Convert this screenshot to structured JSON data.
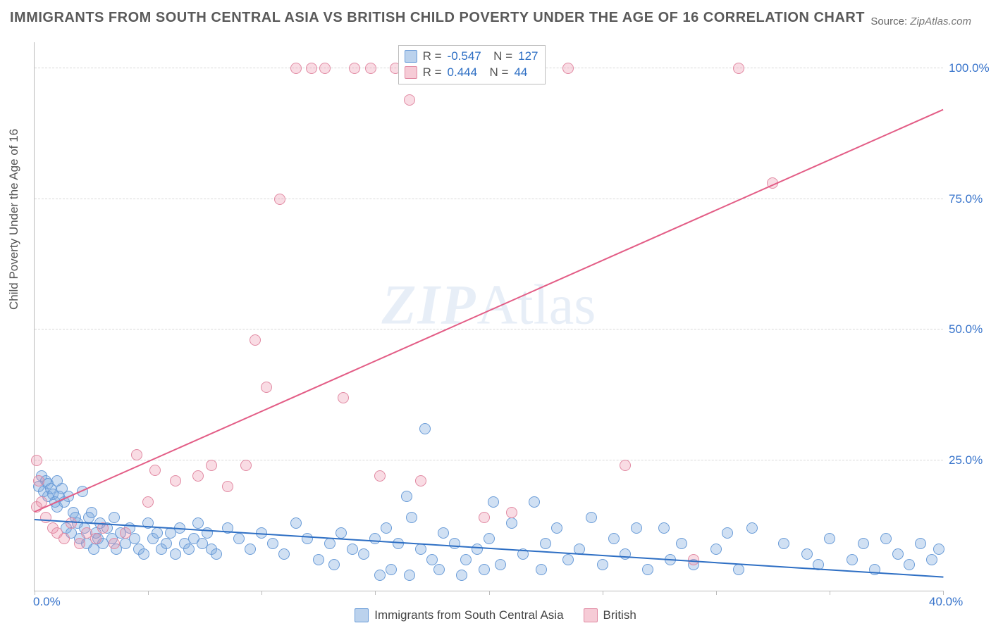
{
  "title": "IMMIGRANTS FROM SOUTH CENTRAL ASIA VS BRITISH CHILD POVERTY UNDER THE AGE OF 16 CORRELATION CHART",
  "source_label": "Source:",
  "source_value": "ZipAtlas.com",
  "watermark_a": "ZIP",
  "watermark_b": "Atlas",
  "ylabel": "Child Poverty Under the Age of 16",
  "chart": {
    "type": "scatter",
    "xlim": [
      0,
      40
    ],
    "ylim": [
      0,
      105
    ],
    "x_ticks": [
      0,
      5,
      10,
      15,
      20,
      25,
      30,
      35,
      40
    ],
    "x_tick_labels": {
      "0": "0.0%",
      "40": "40.0%"
    },
    "y_gridlines": [
      25,
      50,
      75,
      100
    ],
    "y_tick_labels": {
      "25": "25.0%",
      "50": "50.0%",
      "75": "75.0%",
      "100": "100.0%"
    },
    "background_color": "#ffffff",
    "grid_color": "#d8d8d8",
    "axis_color": "#bbbbbb",
    "marker_radius": 8,
    "series": [
      {
        "id": "blue",
        "label": "Immigrants from South Central Asia",
        "fill_color": "rgba(120,165,220,0.35)",
        "stroke_color": "#6a9cd8",
        "trend_color": "#2e6fc4",
        "R": "-0.547",
        "N": "127",
        "trend": {
          "x1": 0,
          "y1": 13.5,
          "x2": 40,
          "y2": 2.5
        },
        "points": [
          [
            0.2,
            20
          ],
          [
            0.3,
            22
          ],
          [
            0.4,
            19
          ],
          [
            0.5,
            21
          ],
          [
            0.6,
            18
          ],
          [
            0.6,
            20.5
          ],
          [
            0.7,
            19.5
          ],
          [
            0.8,
            18.5
          ],
          [
            0.9,
            17
          ],
          [
            1.0,
            21
          ],
          [
            1.0,
            16
          ],
          [
            1.1,
            18
          ],
          [
            1.2,
            19.5
          ],
          [
            1.3,
            17
          ],
          [
            1.4,
            12
          ],
          [
            1.5,
            18
          ],
          [
            1.6,
            11
          ],
          [
            1.7,
            15
          ],
          [
            1.8,
            14
          ],
          [
            1.9,
            13
          ],
          [
            2.0,
            10
          ],
          [
            2.1,
            19
          ],
          [
            2.2,
            12
          ],
          [
            2.3,
            9
          ],
          [
            2.4,
            14
          ],
          [
            2.5,
            15
          ],
          [
            2.6,
            8
          ],
          [
            2.7,
            11
          ],
          [
            2.8,
            10
          ],
          [
            2.9,
            13
          ],
          [
            3.0,
            9
          ],
          [
            3.2,
            12
          ],
          [
            3.4,
            10
          ],
          [
            3.5,
            14
          ],
          [
            3.6,
            8
          ],
          [
            3.8,
            11
          ],
          [
            4.0,
            9
          ],
          [
            4.2,
            12
          ],
          [
            4.4,
            10
          ],
          [
            4.6,
            8
          ],
          [
            4.8,
            7
          ],
          [
            5.0,
            13
          ],
          [
            5.2,
            10
          ],
          [
            5.4,
            11
          ],
          [
            5.6,
            8
          ],
          [
            5.8,
            9
          ],
          [
            6.0,
            11
          ],
          [
            6.2,
            7
          ],
          [
            6.4,
            12
          ],
          [
            6.6,
            9
          ],
          [
            6.8,
            8
          ],
          [
            7.0,
            10
          ],
          [
            7.2,
            13
          ],
          [
            7.4,
            9
          ],
          [
            7.6,
            11
          ],
          [
            7.8,
            8
          ],
          [
            8.0,
            7
          ],
          [
            8.5,
            12
          ],
          [
            9.0,
            10
          ],
          [
            9.5,
            8
          ],
          [
            10.0,
            11
          ],
          [
            10.5,
            9
          ],
          [
            11.0,
            7
          ],
          [
            11.5,
            13
          ],
          [
            12.0,
            10
          ],
          [
            12.5,
            6
          ],
          [
            13.0,
            9
          ],
          [
            13.2,
            5
          ],
          [
            13.5,
            11
          ],
          [
            14.0,
            8
          ],
          [
            14.5,
            7
          ],
          [
            15.0,
            10
          ],
          [
            15.2,
            3
          ],
          [
            15.5,
            12
          ],
          [
            15.7,
            4
          ],
          [
            16.0,
            9
          ],
          [
            16.4,
            18
          ],
          [
            16.5,
            3
          ],
          [
            16.6,
            14
          ],
          [
            17.0,
            8
          ],
          [
            17.2,
            31
          ],
          [
            17.5,
            6
          ],
          [
            17.8,
            4
          ],
          [
            18.0,
            11
          ],
          [
            18.5,
            9
          ],
          [
            18.8,
            3
          ],
          [
            19.0,
            6
          ],
          [
            19.5,
            8
          ],
          [
            19.8,
            4
          ],
          [
            20.0,
            10
          ],
          [
            20.2,
            17
          ],
          [
            20.5,
            5
          ],
          [
            21.0,
            13
          ],
          [
            21.5,
            7
          ],
          [
            22.0,
            17
          ],
          [
            22.3,
            4
          ],
          [
            22.5,
            9
          ],
          [
            23.0,
            12
          ],
          [
            23.5,
            6
          ],
          [
            24.0,
            8
          ],
          [
            24.5,
            14
          ],
          [
            25.0,
            5
          ],
          [
            25.5,
            10
          ],
          [
            26.0,
            7
          ],
          [
            26.5,
            12
          ],
          [
            27.0,
            4
          ],
          [
            27.7,
            12
          ],
          [
            28.0,
            6
          ],
          [
            28.5,
            9
          ],
          [
            29.0,
            5
          ],
          [
            30.0,
            8
          ],
          [
            30.5,
            11
          ],
          [
            31.0,
            4
          ],
          [
            31.6,
            12
          ],
          [
            33.0,
            9
          ],
          [
            34.0,
            7
          ],
          [
            34.5,
            5
          ],
          [
            35.0,
            10
          ],
          [
            36.0,
            6
          ],
          [
            36.5,
            9
          ],
          [
            37.0,
            4
          ],
          [
            37.5,
            10
          ],
          [
            38.0,
            7
          ],
          [
            38.5,
            5
          ],
          [
            39.0,
            9
          ],
          [
            39.5,
            6
          ],
          [
            39.8,
            8
          ]
        ]
      },
      {
        "id": "pink",
        "label": "British",
        "fill_color": "rgba(235,140,165,0.30)",
        "stroke_color": "#e18aa3",
        "trend_color": "#e35d86",
        "R": "0.444",
        "N": "44",
        "trend": {
          "x1": 0,
          "y1": 15,
          "x2": 40,
          "y2": 92
        },
        "points": [
          [
            0.1,
            25
          ],
          [
            0.1,
            16
          ],
          [
            0.2,
            21
          ],
          [
            0.3,
            17
          ],
          [
            0.5,
            14
          ],
          [
            0.8,
            12
          ],
          [
            1.0,
            11
          ],
          [
            1.3,
            10
          ],
          [
            1.6,
            13
          ],
          [
            2.0,
            9
          ],
          [
            2.3,
            11
          ],
          [
            2.7,
            10
          ],
          [
            3.0,
            12
          ],
          [
            3.5,
            9
          ],
          [
            4.0,
            11
          ],
          [
            4.5,
            26
          ],
          [
            5.0,
            17
          ],
          [
            5.3,
            23
          ],
          [
            6.2,
            21
          ],
          [
            7.2,
            22
          ],
          [
            7.8,
            24
          ],
          [
            8.5,
            20
          ],
          [
            9.3,
            24
          ],
          [
            9.7,
            48
          ],
          [
            10.2,
            39
          ],
          [
            10.8,
            75
          ],
          [
            11.5,
            100
          ],
          [
            12.2,
            100
          ],
          [
            12.8,
            100
          ],
          [
            13.6,
            37
          ],
          [
            14.1,
            100
          ],
          [
            14.8,
            100
          ],
          [
            15.2,
            22
          ],
          [
            15.9,
            100
          ],
          [
            16.5,
            94
          ],
          [
            17.0,
            21
          ],
          [
            18.5,
            100
          ],
          [
            19.8,
            14
          ],
          [
            21.0,
            15
          ],
          [
            23.5,
            100
          ],
          [
            26.0,
            24
          ],
          [
            29.0,
            6
          ],
          [
            31.0,
            100
          ],
          [
            32.5,
            78
          ]
        ]
      }
    ]
  }
}
